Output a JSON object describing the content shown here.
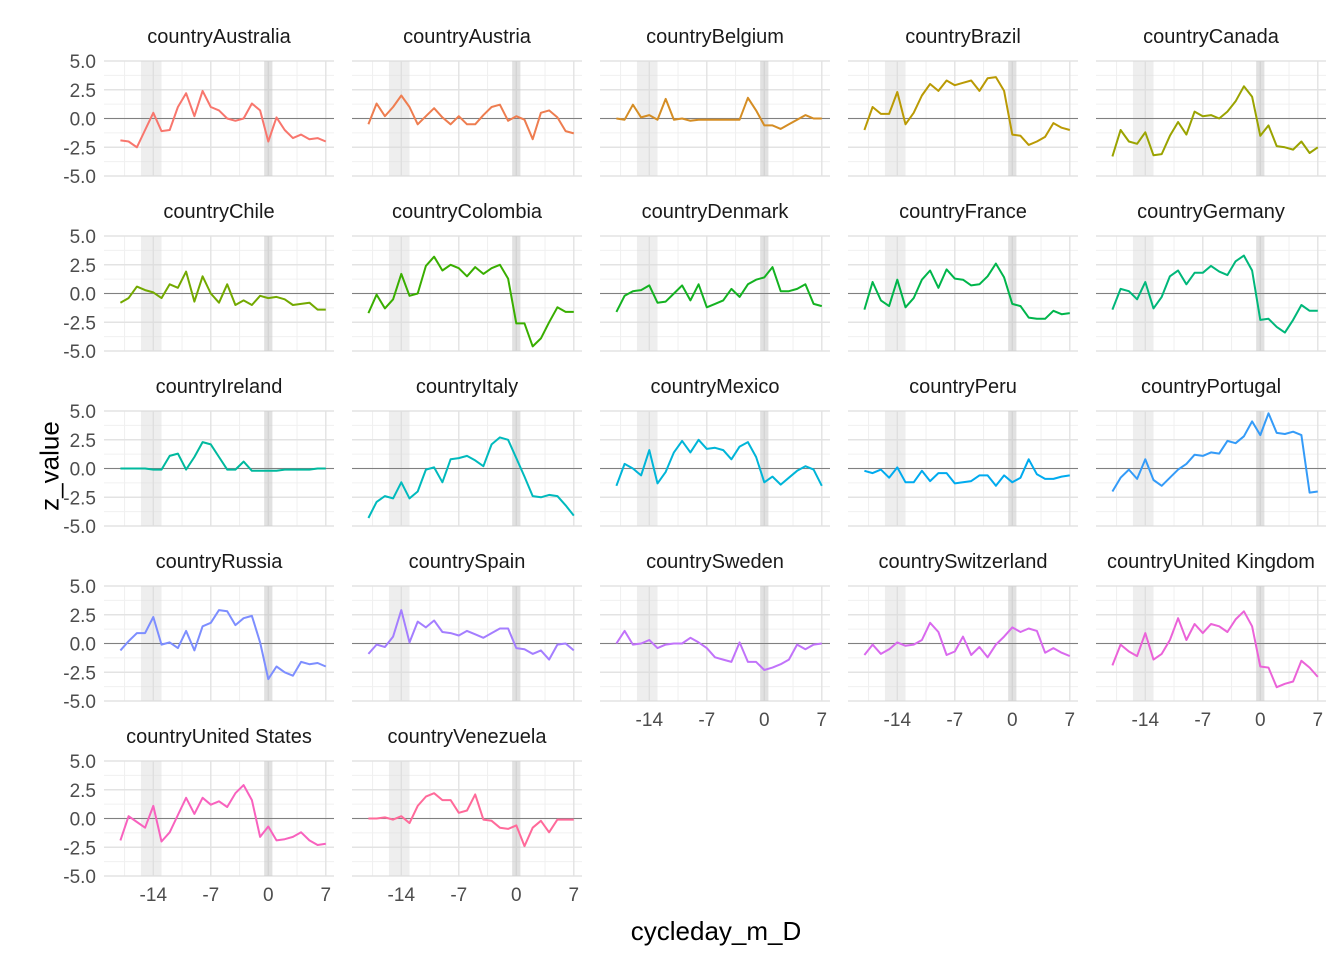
{
  "chart_data": {
    "type": "line",
    "layout": "faceted",
    "xlabel": "cycleday_m_D",
    "ylabel": "z_value",
    "xlim": [
      -20,
      8
    ],
    "ylim": [
      -5,
      5
    ],
    "x_ticks": [
      -14,
      -7,
      0,
      7
    ],
    "y_ticks": [
      5.0,
      2.5,
      0.0,
      -2.5,
      -5.0
    ],
    "y_tick_labels": [
      "5.0",
      "2.5",
      "0.0",
      "-2.5",
      "-5.0"
    ],
    "shaded_bands": [
      [
        -15.5,
        -13
      ],
      [
        -0.5,
        0.5
      ]
    ],
    "reference_line_y": 0,
    "grid": true,
    "x": [
      -18,
      -17,
      -16,
      -15,
      -14,
      -13,
      -12,
      -11,
      -10,
      -9,
      -8,
      -7,
      -6,
      -5,
      -4,
      -3,
      -2,
      -1,
      0,
      1,
      2,
      3,
      4,
      5,
      6,
      7
    ],
    "series": [
      {
        "name": "countryAustralia",
        "color": "#F8766D",
        "values": [
          -1.9,
          -2.0,
          -2.5,
          -1.0,
          0.5,
          -1.1,
          -1.0,
          1.0,
          2.2,
          0.2,
          2.4,
          1.0,
          0.7,
          0.0,
          -0.2,
          0.0,
          1.3,
          0.7,
          -2.0,
          0.1,
          -1.0,
          -1.7,
          -1.4,
          -1.8,
          -1.7,
          -2.0
        ]
      },
      {
        "name": "countryAustria",
        "color": "#EE7D50",
        "values": [
          -0.5,
          1.3,
          0.2,
          1.0,
          2.0,
          1.0,
          -0.5,
          0.2,
          0.9,
          0.1,
          -0.5,
          0.2,
          -0.5,
          -0.5,
          0.3,
          1.0,
          1.2,
          -0.2,
          0.2,
          -0.1,
          -1.8,
          0.5,
          0.7,
          0.1,
          -1.1,
          -1.3
        ]
      },
      {
        "name": "countryBelgium",
        "color": "#D58D24",
        "values": [
          0.0,
          -0.1,
          1.2,
          0.1,
          0.3,
          -0.1,
          1.7,
          -0.1,
          0.0,
          -0.2,
          -0.1,
          -0.1,
          -0.1,
          -0.1,
          -0.1,
          -0.1,
          1.8,
          0.7,
          -0.6,
          -0.6,
          -0.9,
          -0.5,
          -0.1,
          0.3,
          0.0,
          0.0
        ]
      },
      {
        "name": "countryBrazil",
        "color": "#BA9A04",
        "values": [
          -1.0,
          1.0,
          0.4,
          0.4,
          2.3,
          -0.5,
          0.5,
          2.0,
          3.0,
          2.4,
          3.3,
          2.9,
          3.1,
          3.3,
          2.4,
          3.5,
          3.6,
          2.4,
          -1.4,
          -1.5,
          -2.3,
          -2.0,
          -1.6,
          -0.4,
          -0.8,
          -1.0
        ]
      },
      {
        "name": "countryCanada",
        "color": "#9AA300",
        "values": [
          -3.3,
          -1.0,
          -2.0,
          -2.2,
          -1.2,
          -3.2,
          -3.1,
          -1.5,
          -0.3,
          -1.4,
          0.6,
          0.2,
          0.3,
          0.0,
          0.6,
          1.5,
          2.8,
          1.9,
          -1.5,
          -0.6,
          -2.4,
          -2.5,
          -2.7,
          -2.0,
          -3.0,
          -2.5
        ]
      },
      {
        "name": "countryChile",
        "color": "#73A900",
        "values": [
          -0.8,
          -0.4,
          0.6,
          0.3,
          0.1,
          -0.4,
          0.8,
          0.5,
          1.9,
          -0.7,
          1.5,
          0.0,
          -0.8,
          0.8,
          -1.0,
          -0.6,
          -1.0,
          -0.2,
          -0.4,
          -0.3,
          -0.5,
          -1.0,
          -0.9,
          -0.8,
          -1.4,
          -1.4
        ]
      },
      {
        "name": "countryColombia",
        "color": "#39AE00",
        "values": [
          -1.7,
          -0.1,
          -1.3,
          -0.5,
          1.7,
          -0.2,
          0.0,
          2.4,
          3.2,
          2.0,
          2.5,
          2.2,
          1.5,
          2.3,
          1.7,
          2.2,
          2.5,
          1.3,
          -2.6,
          -2.6,
          -4.6,
          -3.9,
          -2.5,
          -1.2,
          -1.6,
          -1.6
        ]
      },
      {
        "name": "countryDenmark",
        "color": "#14B221",
        "values": [
          -1.6,
          -0.2,
          0.2,
          0.3,
          0.7,
          -0.8,
          -0.7,
          0.0,
          0.7,
          -0.6,
          0.8,
          -1.2,
          -0.9,
          -0.6,
          0.4,
          -0.3,
          0.8,
          1.2,
          1.4,
          2.3,
          0.2,
          0.2,
          0.4,
          0.8,
          -0.9,
          -1.1
        ]
      },
      {
        "name": "countryFrance",
        "color": "#00B54B",
        "values": [
          -1.4,
          1.0,
          -0.6,
          -1.1,
          1.2,
          -1.2,
          -0.4,
          1.2,
          2.0,
          0.5,
          2.1,
          1.3,
          1.2,
          0.7,
          0.8,
          1.5,
          2.6,
          1.4,
          -0.9,
          -1.1,
          -2.1,
          -2.2,
          -2.2,
          -1.5,
          -1.8,
          -1.7
        ]
      },
      {
        "name": "countryGermany",
        "color": "#00B77A",
        "values": [
          -1.4,
          0.4,
          0.2,
          -0.5,
          1.0,
          -1.3,
          -0.3,
          1.5,
          2.0,
          0.8,
          1.8,
          1.8,
          2.4,
          1.9,
          1.6,
          2.8,
          3.3,
          2.0,
          -2.3,
          -2.2,
          -2.9,
          -3.4,
          -2.3,
          -1.0,
          -1.5,
          -1.5
        ]
      },
      {
        "name": "countryIreland",
        "color": "#00B99E",
        "values": [
          0.0,
          0.0,
          0.0,
          0.0,
          -0.1,
          -0.1,
          1.1,
          1.3,
          -0.1,
          1.0,
          2.3,
          2.1,
          1.0,
          -0.1,
          -0.1,
          0.6,
          -0.2,
          -0.2,
          -0.2,
          -0.2,
          -0.1,
          -0.1,
          -0.1,
          -0.1,
          0.0,
          0.0
        ]
      },
      {
        "name": "countryItaly",
        "color": "#00BABD",
        "values": [
          -4.3,
          -2.9,
          -2.4,
          -2.6,
          -1.2,
          -2.6,
          -2.0,
          -0.1,
          0.1,
          -1.2,
          0.8,
          0.9,
          1.1,
          0.7,
          0.2,
          2.1,
          2.7,
          2.5,
          0.9,
          -0.7,
          -2.4,
          -2.5,
          -2.3,
          -2.4,
          -3.2,
          -4.1
        ]
      },
      {
        "name": "countryMexico",
        "color": "#00B5D8",
        "values": [
          -1.5,
          0.4,
          0.0,
          -0.6,
          1.6,
          -1.3,
          -0.3,
          1.4,
          2.4,
          1.4,
          2.5,
          1.7,
          1.8,
          1.6,
          0.8,
          1.9,
          2.3,
          1.0,
          -1.2,
          -0.7,
          -1.4,
          -0.8,
          -0.2,
          0.2,
          -0.1,
          -1.5
        ]
      },
      {
        "name": "countryPeru",
        "color": "#00ABEF",
        "values": [
          -0.2,
          -0.4,
          -0.1,
          -0.8,
          0.1,
          -1.2,
          -1.2,
          -0.2,
          -1.1,
          -0.4,
          -0.4,
          -1.3,
          -1.2,
          -1.1,
          -0.6,
          -0.6,
          -1.5,
          -0.6,
          -1.2,
          -0.8,
          0.8,
          -0.5,
          -0.9,
          -0.9,
          -0.7,
          -0.6
        ]
      },
      {
        "name": "countryPortugal",
        "color": "#349BF8",
        "values": [
          -2.0,
          -0.8,
          -0.1,
          -0.9,
          0.8,
          -1.0,
          -1.5,
          -0.8,
          -0.1,
          0.4,
          1.2,
          1.1,
          1.4,
          1.3,
          2.4,
          2.2,
          2.8,
          4.1,
          2.9,
          4.8,
          3.1,
          3.0,
          3.2,
          2.9,
          -2.1,
          -2.0
        ]
      },
      {
        "name": "countryRussia",
        "color": "#7D8EFF",
        "values": [
          -0.6,
          0.2,
          0.9,
          0.9,
          2.3,
          -0.1,
          0.1,
          -0.4,
          1.1,
          -0.6,
          1.5,
          1.8,
          2.9,
          2.8,
          1.6,
          2.2,
          2.4,
          0.1,
          -3.1,
          -2.0,
          -2.5,
          -2.8,
          -1.6,
          -1.8,
          -1.7,
          -2.0
        ]
      },
      {
        "name": "countrySpain",
        "color": "#A47EFF",
        "values": [
          -0.9,
          -0.1,
          -0.3,
          0.6,
          2.9,
          0.1,
          1.9,
          1.4,
          2.0,
          1.0,
          0.9,
          0.7,
          1.1,
          0.8,
          0.5,
          0.9,
          1.3,
          1.3,
          -0.4,
          -0.5,
          -0.9,
          -0.6,
          -1.4,
          -0.1,
          0.0,
          -0.6
        ]
      },
      {
        "name": "countrySweden",
        "color": "#C173FA",
        "values": [
          0.0,
          1.1,
          -0.1,
          0.0,
          0.3,
          -0.4,
          -0.1,
          0.0,
          0.0,
          0.5,
          0.1,
          -0.4,
          -1.2,
          -1.4,
          -1.6,
          0.1,
          -1.6,
          -1.6,
          -2.3,
          -2.1,
          -1.8,
          -1.4,
          -0.1,
          -0.5,
          -0.1,
          0.0
        ]
      },
      {
        "name": "countrySwitzerland",
        "color": "#D96AEE",
        "values": [
          -1.0,
          -0.1,
          -0.9,
          -0.5,
          0.1,
          -0.2,
          -0.1,
          0.3,
          1.8,
          1.0,
          -1.0,
          -0.7,
          0.6,
          -1.0,
          -0.3,
          -1.2,
          -0.1,
          0.6,
          1.4,
          1.0,
          1.3,
          1.1,
          -0.8,
          -0.4,
          -0.8,
          -1.1
        ]
      },
      {
        "name": "countryUnited Kingdom",
        "color": "#EB63D8",
        "values": [
          -1.9,
          -0.1,
          -0.7,
          -1.1,
          0.9,
          -1.4,
          -0.9,
          0.3,
          2.2,
          0.3,
          1.7,
          0.9,
          1.7,
          1.5,
          1.0,
          2.1,
          2.8,
          1.5,
          -2.0,
          -2.1,
          -3.8,
          -3.5,
          -3.3,
          -1.5,
          -2.1,
          -2.9
        ]
      },
      {
        "name": "countryUnited States",
        "color": "#F862BE",
        "values": [
          -1.9,
          0.2,
          -0.3,
          -0.8,
          1.1,
          -2.0,
          -1.2,
          0.3,
          1.8,
          0.4,
          1.8,
          1.2,
          1.5,
          1.0,
          2.2,
          2.9,
          1.6,
          -1.6,
          -0.7,
          -1.9,
          -1.8,
          -1.6,
          -1.2,
          -1.9,
          -2.3,
          -2.2
        ]
      },
      {
        "name": "countryVenezuela",
        "color": "#FF6A9A",
        "values": [
          0.0,
          0.0,
          0.1,
          -0.1,
          0.2,
          -0.4,
          1.1,
          1.9,
          2.2,
          1.6,
          1.6,
          0.5,
          0.7,
          2.1,
          -0.1,
          -0.2,
          -0.8,
          -0.9,
          -0.6,
          -2.4,
          -0.8,
          -0.2,
          -1.2,
          -0.1,
          -0.1,
          -0.1
        ]
      }
    ]
  }
}
